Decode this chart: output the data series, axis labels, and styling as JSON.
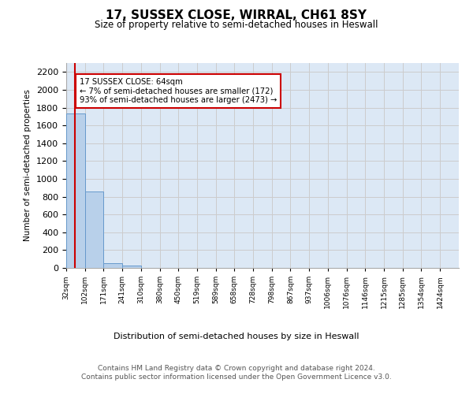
{
  "title": "17, SUSSEX CLOSE, WIRRAL, CH61 8SY",
  "subtitle": "Size of property relative to semi-detached houses in Heswall",
  "xlabel": "Distribution of semi-detached houses by size in Heswall",
  "ylabel": "Number of semi-detached properties",
  "bin_labels": [
    "32sqm",
    "102sqm",
    "171sqm",
    "241sqm",
    "310sqm",
    "380sqm",
    "450sqm",
    "519sqm",
    "589sqm",
    "658sqm",
    "728sqm",
    "798sqm",
    "867sqm",
    "937sqm",
    "1006sqm",
    "1076sqm",
    "1146sqm",
    "1215sqm",
    "1285sqm",
    "1354sqm",
    "1424sqm"
  ],
  "bin_edges": [
    32,
    102,
    171,
    241,
    310,
    380,
    450,
    519,
    589,
    658,
    728,
    798,
    867,
    937,
    1006,
    1076,
    1146,
    1215,
    1285,
    1354,
    1424,
    1494
  ],
  "bar_heights": [
    1730,
    860,
    50,
    25,
    0,
    0,
    0,
    0,
    0,
    0,
    0,
    0,
    0,
    0,
    0,
    0,
    0,
    0,
    0,
    0,
    0
  ],
  "bar_color": "#b8d0ea",
  "bar_edge_color": "#6699cc",
  "property_size": 64,
  "property_label": "17 SUSSEX CLOSE: 64sqm",
  "pct_smaller": 7,
  "n_smaller": 172,
  "pct_larger": 93,
  "n_larger": 2473,
  "red_line_color": "#cc0000",
  "annotation_box_color": "#cc0000",
  "ylim": [
    0,
    2300
  ],
  "yticks": [
    0,
    200,
    400,
    600,
    800,
    1000,
    1200,
    1400,
    1600,
    1800,
    2000,
    2200
  ],
  "grid_color": "#cccccc",
  "bg_color": "#dce8f5",
  "footer_line1": "Contains HM Land Registry data © Crown copyright and database right 2024.",
  "footer_line2": "Contains public sector information licensed under the Open Government Licence v3.0."
}
